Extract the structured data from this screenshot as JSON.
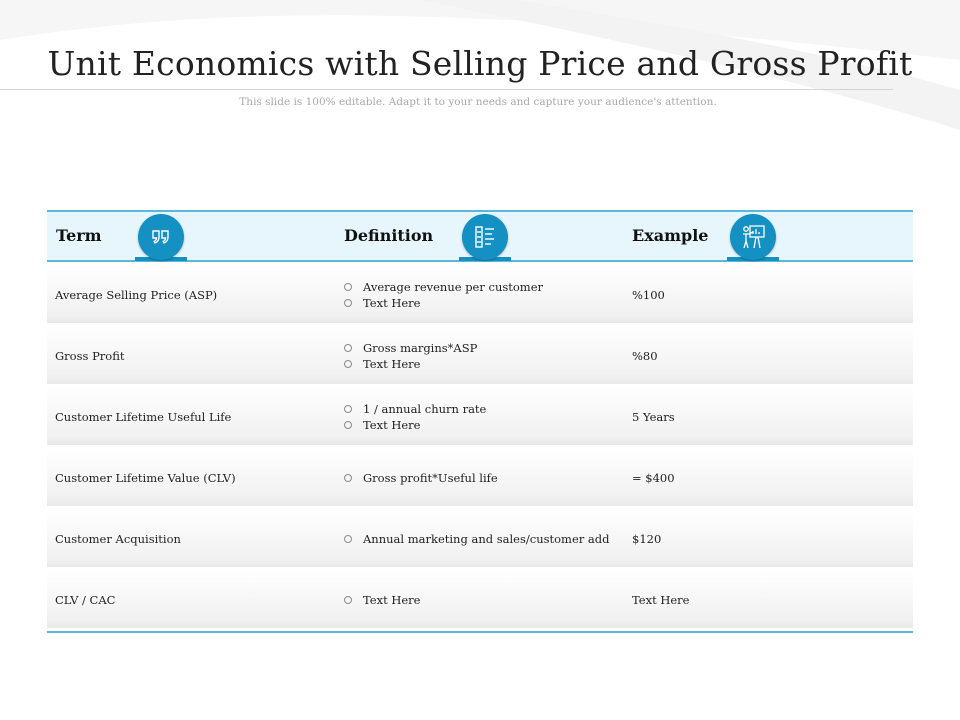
{
  "slide": {
    "title": "Unit Economics with Selling Price and Gross Profit",
    "subtitle": "This slide is 100% editable. Adapt it to your needs and capture your audience's attention."
  },
  "colors": {
    "accent": "#1590c2",
    "header_bg": "#e6f6fc",
    "rule": "#5cb8d8"
  },
  "table": {
    "headers": {
      "term": "Term",
      "definition": "Definition",
      "example": "Example"
    },
    "header_icons": [
      "quote-marks-icon",
      "checklist-icon",
      "presenter-board-icon"
    ],
    "rows": [
      {
        "term": "Average Selling Price (ASP)",
        "definition": [
          "Average  revenue  per  customer",
          "Text  Here"
        ],
        "example": "%100"
      },
      {
        "term": "Gross  Profit",
        "definition": [
          "Gross  margins*ASP",
          "Text  Here"
        ],
        "example": "%80"
      },
      {
        "term": "Customer  Lifetime  Useful  Life",
        "definition": [
          "1  /  annual  churn  rate",
          "Text  Here"
        ],
        "example": "5  Years"
      },
      {
        "term": "Customer  Lifetime  Value  (CLV)",
        "definition": [
          "Gross  profit*Useful  life"
        ],
        "example": "=  $400"
      },
      {
        "term": "Customer  Acquisition",
        "definition": [
          "Annual  marketing  and  sales/customer  add"
        ],
        "example": "$120"
      },
      {
        "term": "CLV  /  CAC",
        "definition": [
          "Text  Here"
        ],
        "example": "Text  Here"
      }
    ]
  }
}
